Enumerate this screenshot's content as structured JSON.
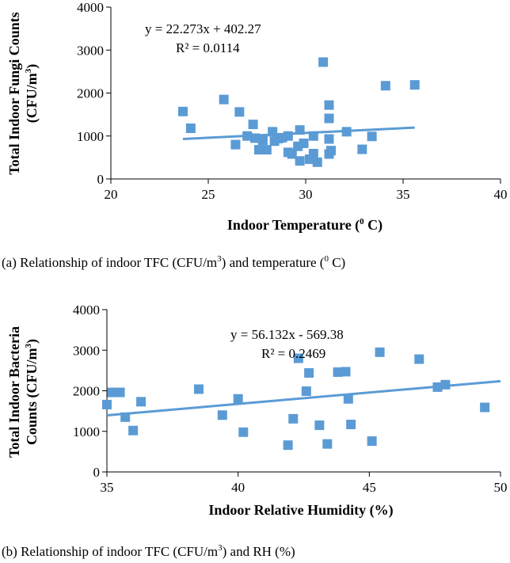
{
  "colors": {
    "marker": "#5B9BD5",
    "trendline": "#5B9BD5",
    "axis": "#000000",
    "text": "#000000"
  },
  "chart_data": [
    {
      "type": "scatter",
      "xlabel": {
        "main": "Indoor Temperature (",
        "sup": "0",
        "tail": " C)"
      },
      "ylabel": {
        "line1": "Total Indoor Fungi Counts",
        "line2_main": "(CFU/m",
        "line2_sup": "3",
        "line2_tail": ")"
      },
      "xlim": [
        20,
        40
      ],
      "ylim": [
        0,
        4000
      ],
      "x_ticks": [
        "20",
        "25",
        "30",
        "35",
        "40"
      ],
      "y_ticks": [
        "0",
        "1000",
        "2000",
        "3000",
        "4000"
      ],
      "equation": "y = 22.273x + 402.27",
      "r_squared": "R² = 0.0114",
      "trendline": {
        "slope": 22.273,
        "intercept": 402.27,
        "x_range": [
          23.7,
          35.6
        ]
      },
      "points": [
        [
          23.7,
          1570
        ],
        [
          24.1,
          1180
        ],
        [
          25.8,
          1850
        ],
        [
          26.4,
          800
        ],
        [
          26.6,
          1560
        ],
        [
          27.0,
          1000
        ],
        [
          27.3,
          1270
        ],
        [
          27.4,
          950
        ],
        [
          27.6,
          680
        ],
        [
          27.8,
          900
        ],
        [
          28.0,
          680
        ],
        [
          28.3,
          1100
        ],
        [
          28.4,
          880
        ],
        [
          28.6,
          940
        ],
        [
          28.8,
          960
        ],
        [
          29.1,
          1000
        ],
        [
          29.1,
          620
        ],
        [
          29.3,
          580
        ],
        [
          29.6,
          760
        ],
        [
          29.7,
          1140
        ],
        [
          29.7,
          420
        ],
        [
          29.9,
          830
        ],
        [
          30.2,
          460
        ],
        [
          30.4,
          1000
        ],
        [
          30.4,
          590
        ],
        [
          30.6,
          390
        ],
        [
          30.9,
          2720
        ],
        [
          31.2,
          1720
        ],
        [
          31.2,
          1410
        ],
        [
          31.2,
          930
        ],
        [
          31.2,
          580
        ],
        [
          31.3,
          660
        ],
        [
          32.1,
          1100
        ],
        [
          32.9,
          690
        ],
        [
          33.4,
          990
        ],
        [
          34.1,
          2170
        ],
        [
          35.6,
          2190
        ]
      ],
      "caption": {
        "a": "(a) Relationship of indoor TFC (CFU/m",
        "sup1": "3",
        "b": ") and temperature (",
        "sup2": "0",
        "c": " C)"
      }
    },
    {
      "type": "scatter",
      "xlabel": {
        "main": "Indoor Relative Humidity (%)"
      },
      "ylabel": {
        "line1": "Total Indoor Bacteria",
        "line2_main": "Counts (CFU/m",
        "line2_sup": "3",
        "line2_tail": ")"
      },
      "xlim": [
        35,
        50
      ],
      "ylim": [
        0,
        4000
      ],
      "x_ticks": [
        "35",
        "40",
        "45",
        "50"
      ],
      "y_ticks": [
        "0",
        "1000",
        "2000",
        "3000",
        "4000"
      ],
      "equation": "y = 56.132x - 569.38",
      "r_squared": "R² = 0.2469",
      "trendline": {
        "slope": 56.132,
        "intercept": -569.38,
        "x_range": [
          35.0,
          50.0
        ]
      },
      "points": [
        [
          35.0,
          1660
        ],
        [
          35.2,
          1960
        ],
        [
          35.5,
          1960
        ],
        [
          35.7,
          1350
        ],
        [
          36.0,
          1020
        ],
        [
          36.3,
          1730
        ],
        [
          38.5,
          2040
        ],
        [
          39.4,
          1400
        ],
        [
          40.0,
          1800
        ],
        [
          40.2,
          980
        ],
        [
          41.9,
          660
        ],
        [
          42.1,
          1310
        ],
        [
          42.3,
          2800
        ],
        [
          42.6,
          1990
        ],
        [
          42.7,
          2440
        ],
        [
          43.1,
          1150
        ],
        [
          43.4,
          690
        ],
        [
          43.8,
          2460
        ],
        [
          44.1,
          2470
        ],
        [
          44.2,
          1800
        ],
        [
          44.3,
          1170
        ],
        [
          45.1,
          760
        ],
        [
          45.4,
          2950
        ],
        [
          46.9,
          2780
        ],
        [
          47.6,
          2090
        ],
        [
          47.9,
          2150
        ],
        [
          49.4,
          1590
        ]
      ],
      "caption": {
        "a": "(b) Relationship of indoor TFC (CFU/m",
        "sup1": "3",
        "b": ") and RH (%)"
      }
    }
  ]
}
